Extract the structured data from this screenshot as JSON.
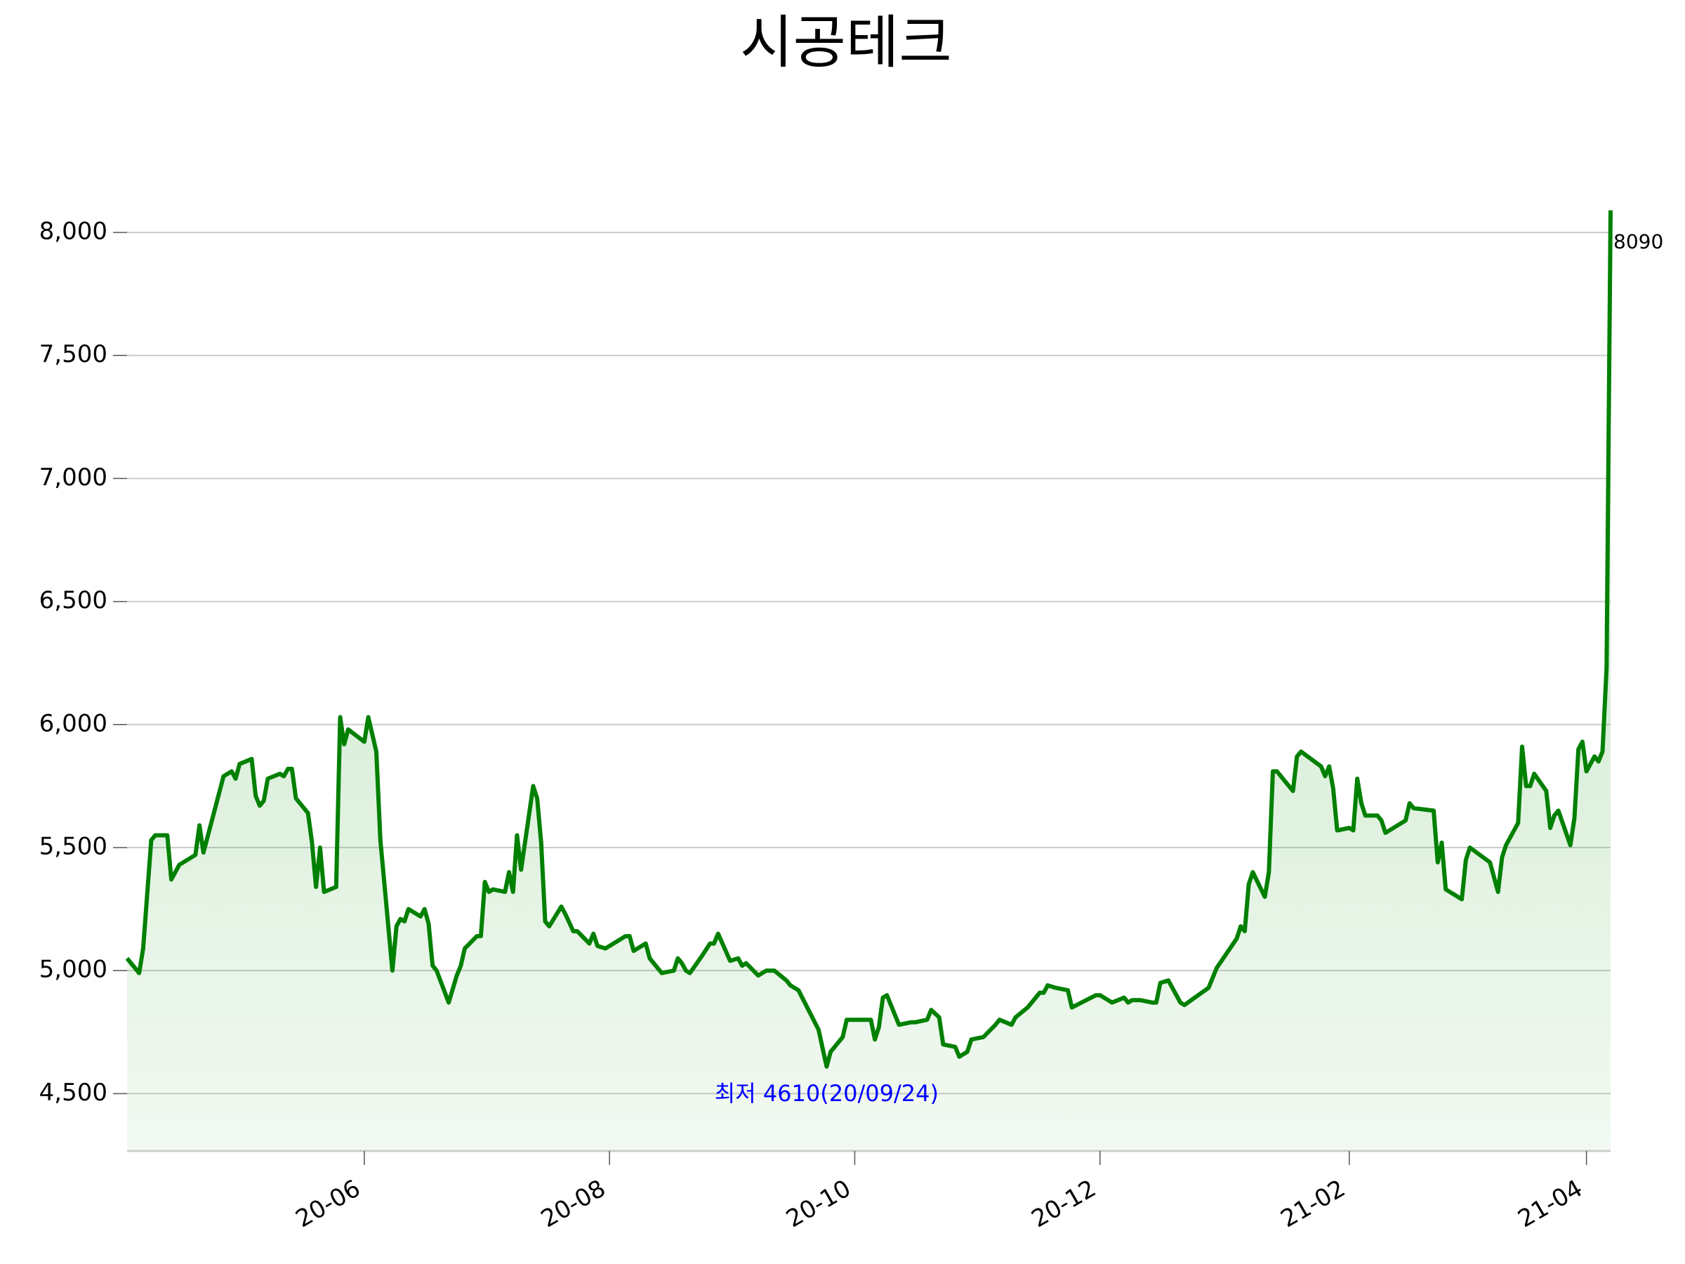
{
  "chart_data": {
    "type": "line",
    "title": "시공테크",
    "x": [
      "2020-04-03",
      "2020-04-06",
      "2020-04-07",
      "2020-04-09",
      "2020-04-10",
      "2020-04-13",
      "2020-04-14",
      "2020-04-16",
      "2020-04-20",
      "2020-04-21",
      "2020-04-22",
      "2020-04-27",
      "2020-04-29",
      "2020-04-30",
      "2020-05-01",
      "2020-05-04",
      "2020-05-05",
      "2020-05-06",
      "2020-05-07",
      "2020-05-08",
      "2020-05-11",
      "2020-05-12",
      "2020-05-13",
      "2020-05-14",
      "2020-05-15",
      "2020-05-18",
      "2020-05-19",
      "2020-05-20",
      "2020-05-21",
      "2020-05-22",
      "2020-05-25",
      "2020-05-26",
      "2020-05-27",
      "2020-05-28",
      "2020-06-01",
      "2020-06-02",
      "2020-06-04",
      "2020-06-05",
      "2020-06-08",
      "2020-06-09",
      "2020-06-10",
      "2020-06-11",
      "2020-06-12",
      "2020-06-15",
      "2020-06-16",
      "2020-06-17",
      "2020-06-18",
      "2020-06-19",
      "2020-06-22",
      "2020-06-24",
      "2020-06-25",
      "2020-06-26",
      "2020-06-29",
      "2020-06-30",
      "2020-07-01",
      "2020-07-02",
      "2020-07-03",
      "2020-07-06",
      "2020-07-07",
      "2020-07-08",
      "2020-07-09",
      "2020-07-10",
      "2020-07-13",
      "2020-07-14",
      "2020-07-15",
      "2020-07-16",
      "2020-07-17",
      "2020-07-20",
      "2020-07-21",
      "2020-07-23",
      "2020-07-24",
      "2020-07-27",
      "2020-07-28",
      "2020-07-29",
      "2020-07-31",
      "2020-08-05",
      "2020-08-06",
      "2020-08-07",
      "2020-08-10",
      "2020-08-11",
      "2020-08-14",
      "2020-08-17",
      "2020-08-18",
      "2020-08-19",
      "2020-08-20",
      "2020-08-21",
      "2020-08-24",
      "2020-08-26",
      "2020-08-27",
      "2020-08-28",
      "2020-08-31",
      "2020-09-02",
      "2020-09-03",
      "2020-09-04",
      "2020-09-07",
      "2020-09-09",
      "2020-09-11",
      "2020-09-14",
      "2020-09-15",
      "2020-09-17",
      "2020-09-22",
      "2020-09-24",
      "2020-09-25",
      "2020-09-28",
      "2020-09-29",
      "2020-10-05",
      "2020-10-06",
      "2020-10-07",
      "2020-10-08",
      "2020-10-09",
      "2020-10-12",
      "2020-10-15",
      "2020-10-16",
      "2020-10-19",
      "2020-10-20",
      "2020-10-22",
      "2020-10-23",
      "2020-10-26",
      "2020-10-27",
      "2020-10-29",
      "2020-10-30",
      "2020-11-02",
      "2020-11-05",
      "2020-11-06",
      "2020-11-09",
      "2020-11-10",
      "2020-11-13",
      "2020-11-16",
      "2020-11-17",
      "2020-11-18",
      "2020-11-20",
      "2020-11-23",
      "2020-11-24",
      "2020-11-30",
      "2020-12-01",
      "2020-12-03",
      "2020-12-04",
      "2020-12-07",
      "2020-12-08",
      "2020-12-09",
      "2020-12-11",
      "2020-12-14",
      "2020-12-15",
      "2020-12-16",
      "2020-12-18",
      "2020-12-21",
      "2020-12-22",
      "2020-12-28",
      "2020-12-30",
      "2021-01-04",
      "2021-01-05",
      "2021-01-06",
      "2021-01-07",
      "2021-01-08",
      "2021-01-11",
      "2021-01-12",
      "2021-01-13",
      "2021-01-14",
      "2021-01-18",
      "2021-01-19",
      "2021-01-20",
      "2021-01-25",
      "2021-01-26",
      "2021-01-27",
      "2021-01-28",
      "2021-01-29",
      "2021-02-01",
      "2021-02-02",
      "2021-02-03",
      "2021-02-04",
      "2021-02-05",
      "2021-02-08",
      "2021-02-09",
      "2021-02-10",
      "2021-02-15",
      "2021-02-16",
      "2021-02-17",
      "2021-02-22",
      "2021-02-23",
      "2021-02-24",
      "2021-02-25",
      "2021-03-01",
      "2021-03-02",
      "2021-03-03",
      "2021-03-08",
      "2021-03-10",
      "2021-03-11",
      "2021-03-12",
      "2021-03-15",
      "2021-03-16",
      "2021-03-17",
      "2021-03-18",
      "2021-03-19",
      "2021-03-22",
      "2021-03-23",
      "2021-03-24",
      "2021-03-25",
      "2021-03-28",
      "2021-03-29",
      "2021-03-30",
      "2021-03-31",
      "2021-04-01",
      "2021-04-03",
      "2021-04-04",
      "2021-04-05",
      "2021-04-06",
      "2021-04-07"
    ],
    "series": [
      {
        "color": "#008000",
        "values": [
          5050,
          4990,
          5090,
          5530,
          5550,
          5550,
          5370,
          5430,
          5470,
          5590,
          5480,
          5790,
          5810,
          5780,
          5840,
          5860,
          5710,
          5670,
          5690,
          5780,
          5800,
          5790,
          5820,
          5820,
          5700,
          5640,
          5520,
          5340,
          5500,
          5320,
          5340,
          6030,
          5920,
          5980,
          5930,
          6030,
          5890,
          5530,
          5000,
          5180,
          5210,
          5200,
          5250,
          5220,
          5250,
          5190,
          5020,
          5000,
          4870,
          4980,
          5020,
          5090,
          5140,
          5140,
          5360,
          5320,
          5330,
          5320,
          5400,
          5320,
          5550,
          5410,
          5750,
          5700,
          5520,
          5200,
          5180,
          5260,
          5230,
          5160,
          5160,
          5110,
          5150,
          5100,
          5090,
          5140,
          5140,
          5080,
          5110,
          5050,
          4990,
          5000,
          5050,
          5030,
          5000,
          4990,
          5060,
          5110,
          5110,
          5150,
          5040,
          5050,
          5020,
          5030,
          4980,
          5000,
          5000,
          4960,
          4940,
          4920,
          4760,
          4610,
          4670,
          4730,
          4800,
          4800,
          4720,
          4770,
          4890,
          4900,
          4780,
          4790,
          4790,
          4800,
          4840,
          4810,
          4700,
          4690,
          4650,
          4670,
          4720,
          4730,
          4780,
          4800,
          4780,
          4810,
          4850,
          4910,
          4910,
          4940,
          4930,
          4920,
          4850,
          4900,
          4900,
          4880,
          4870,
          4890,
          4870,
          4880,
          4880,
          4870,
          4870,
          4950,
          4960,
          4870,
          4860,
          4930,
          5010,
          5130,
          5180,
          5160,
          5350,
          5400,
          5300,
          5400,
          5810,
          5810,
          5730,
          5870,
          5890,
          5830,
          5790,
          5830,
          5740,
          5570,
          5580,
          5570,
          5780,
          5680,
          5630,
          5630,
          5610,
          5560,
          5610,
          5680,
          5660,
          5650,
          5440,
          5520,
          5330,
          5290,
          5450,
          5500,
          5440,
          5320,
          5460,
          5510,
          5600,
          5910,
          5750,
          5750,
          5800,
          5730,
          5580,
          5630,
          5650,
          5510,
          5620,
          5900,
          5930,
          5810,
          5870,
          5850,
          5890,
          6230,
          8090
        ]
      }
    ],
    "xlim": [
      "2020-04-03",
      "2021-04-07"
    ],
    "xticks": [
      {
        "value": "2020-06-01",
        "label": "20-06"
      },
      {
        "value": "2020-08-01",
        "label": "20-08"
      },
      {
        "value": "2020-10-01",
        "label": "20-10"
      },
      {
        "value": "2020-12-01",
        "label": "20-12"
      },
      {
        "value": "2021-02-01",
        "label": "21-02"
      },
      {
        "value": "2021-04-01",
        "label": "21-04"
      }
    ],
    "ylim": [
      4267,
      8100
    ],
    "yticks": [
      {
        "value": 4500,
        "label": "4,500"
      },
      {
        "value": 5000,
        "label": "5,000"
      },
      {
        "value": 5500,
        "label": "5,500"
      },
      {
        "value": 6000,
        "label": "6,000"
      },
      {
        "value": 6500,
        "label": "6,500"
      },
      {
        "value": 7000,
        "label": "7,000"
      },
      {
        "value": 7500,
        "label": "7,500"
      },
      {
        "value": 8000,
        "label": "8,000"
      }
    ],
    "grid": true,
    "annotations": [
      {
        "text": "최저 4610(20/09/24)",
        "color": "#0000ff"
      }
    ]
  }
}
